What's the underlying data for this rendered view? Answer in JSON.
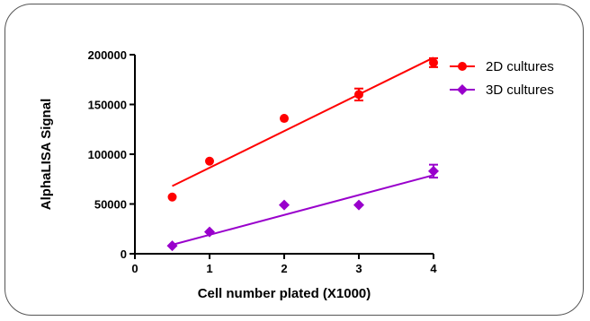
{
  "chart_data": {
    "type": "scatter",
    "title": "",
    "xlabel": "Cell number plated (X1000)",
    "ylabel": "AlphaLISA Signal",
    "xlim": [
      0,
      4
    ],
    "ylim": [
      0,
      200000
    ],
    "x_ticks": [
      0,
      1,
      2,
      3,
      4
    ],
    "x_tick_labels": [
      "0",
      "1",
      "2",
      "3",
      "4"
    ],
    "y_ticks": [
      0,
      50000,
      100000,
      150000,
      200000
    ],
    "y_tick_labels": [
      "0",
      "50000",
      "100000",
      "150000",
      "200000"
    ],
    "grid": false,
    "legend_position": "top-right",
    "series": [
      {
        "name": "2D cultures",
        "marker": "circle",
        "color": "#ff0000",
        "x": [
          0.5,
          1,
          2,
          3,
          4
        ],
        "y": [
          57000,
          93000,
          136000,
          160000,
          192000
        ],
        "error": [
          0,
          0,
          0,
          6000,
          4500
        ],
        "fit": [
          [
            0.5,
            68000
          ],
          [
            4,
            197000
          ]
        ]
      },
      {
        "name": "3D cultures",
        "marker": "diamond",
        "color": "#9900cc",
        "x": [
          0.5,
          1,
          2,
          3,
          4
        ],
        "y": [
          8000,
          22000,
          49000,
          49000,
          83000
        ],
        "error": [
          0,
          0,
          0,
          0,
          6500
        ],
        "fit": [
          [
            0.5,
            9000
          ],
          [
            4,
            79000
          ]
        ]
      }
    ]
  }
}
